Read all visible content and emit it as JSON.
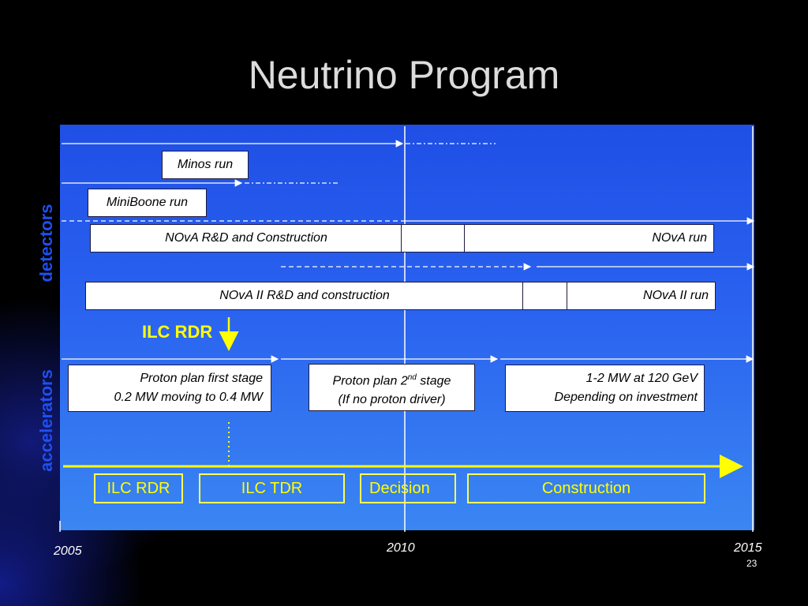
{
  "title": "Neutrino Program",
  "side_labels": {
    "detectors": "detectors",
    "accelerators": "accelerators"
  },
  "boxes": {
    "minos_run": "Minos run",
    "miniboone_run": "MiniBoone run",
    "nova_rd": "NOvA R&D and Construction",
    "nova_run": "NOvA run",
    "nova2_rd": "NOvA II R&D and construction",
    "nova2_run": "NOvA II run",
    "proton1_line1": "Proton plan first stage",
    "proton1_line2": "0.2 MW moving to 0.4 MW",
    "proton2_line1_a": "Proton plan 2",
    "proton2_line1_sup": "nd",
    "proton2_line1_b": " stage",
    "proton2_line2": "(If no proton driver)",
    "mw_line1": "1-2 MW at 120 GeV",
    "mw_line2": "Depending  on investment"
  },
  "ilc_label": "ILC RDR",
  "ilc_phases": [
    "ILC RDR",
    "ILC TDR",
    "Decision",
    "Construction"
  ],
  "years": {
    "start": "2005",
    "mid": "2010",
    "end": "2015"
  },
  "page_number": "23",
  "colors": {
    "panel_top": "#1f4fe6",
    "panel_bottom": "#3a86f2",
    "accent_yellow": "#ffff00",
    "label_blue": "#1f4ff0"
  }
}
